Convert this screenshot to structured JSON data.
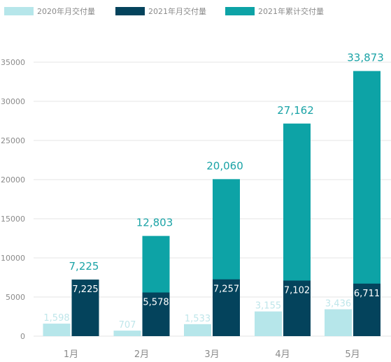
{
  "chart_data": {
    "type": "bar",
    "categories": [
      "1月",
      "2月",
      "3月",
      "4月",
      "5月"
    ],
    "series": [
      {
        "name": "2020年月交付量",
        "values": [
          1598,
          707,
          1533,
          3155,
          3436
        ],
        "color": "#b6e6ea"
      },
      {
        "name": "2021年月交付量",
        "values": [
          7225,
          5578,
          7257,
          7102,
          6711
        ],
        "color": "#04435c"
      },
      {
        "name": "2021年累计交付量",
        "values": [
          7225,
          12803,
          20060,
          27162,
          33873
        ],
        "color": "#0da3a6"
      }
    ],
    "labels": {
      "s2020": [
        "1,598",
        "707",
        "1,533",
        "3,155",
        "3,436"
      ],
      "s2021": [
        "7,225",
        "5,578",
        "7,257",
        "7,102",
        "6,711"
      ],
      "cum": [
        "7,225",
        "12,803",
        "20,060",
        "27,162",
        "33,873"
      ]
    },
    "y_ticks": [
      "0",
      "5000",
      "10000",
      "15000",
      "20000",
      "25000",
      "30000",
      "35000"
    ],
    "ylim": [
      0,
      35000
    ],
    "grid": true,
    "legend_position": "top-left"
  }
}
